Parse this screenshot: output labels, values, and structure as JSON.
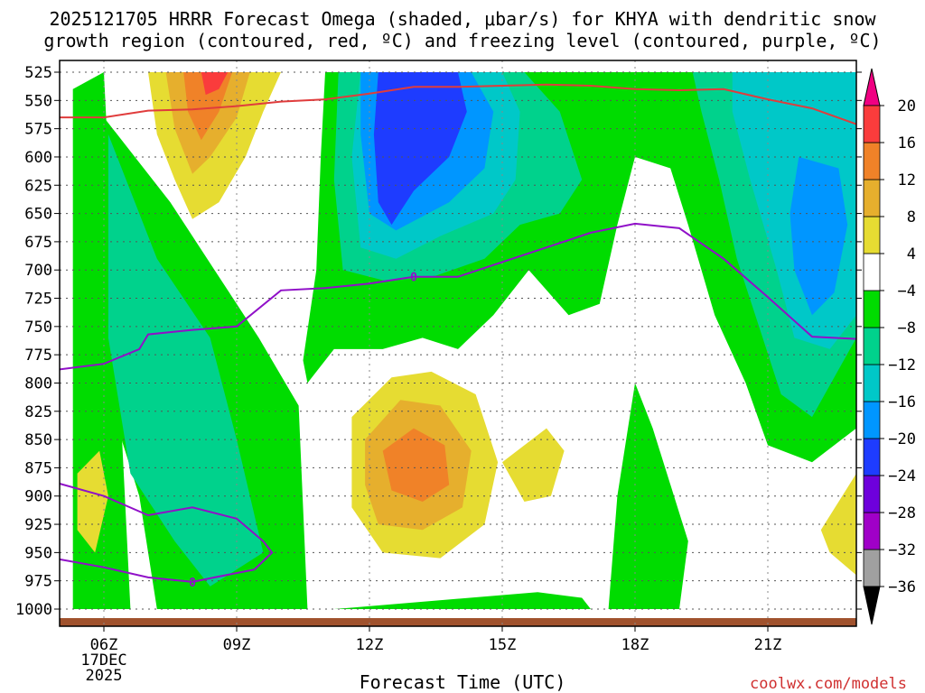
{
  "title_line1": "2025121705 HRRR Forecast Omega (shaded, μbar/s) for KHYA with dendritic snow",
  "title_line2": "growth region (contoured, red, ºC) and freezing level (contoured, purple, ºC)",
  "x_axis_label": "Forecast Time (UTC)",
  "credit": "coolwx.com/models",
  "date_labels": [
    "17DEC",
    "2025"
  ],
  "colors": {
    "credit": "#d03030",
    "ground": "#a0522d",
    "snow_contour": "#e03c3c",
    "freezing_contour": "#9010c8"
  },
  "chart_data": {
    "type": "heatmap",
    "title": "2025121705 HRRR Forecast Omega (shaded, μbar/s) for KHYA with dendritic snow growth region (contoured, red, ºC) and freezing level (contoured, purple, ºC)",
    "xlabel": "Forecast Time (UTC)",
    "ylabel": "",
    "x_ticks": [
      {
        "hour": 6,
        "label": "06Z"
      },
      {
        "hour": 9,
        "label": "09Z"
      },
      {
        "hour": 12,
        "label": "12Z"
      },
      {
        "hour": 15,
        "label": "15Z"
      },
      {
        "hour": 18,
        "label": "18Z"
      },
      {
        "hour": 21,
        "label": "21Z"
      }
    ],
    "xlim": [
      5,
      23
    ],
    "y_ticks": [
      525,
      550,
      575,
      600,
      625,
      650,
      675,
      700,
      725,
      750,
      775,
      800,
      825,
      850,
      875,
      900,
      925,
      950,
      975,
      1000
    ],
    "ylim_hpa": [
      1000,
      525
    ],
    "grid": true,
    "colorbar": {
      "levels": [
        -36,
        -32,
        -28,
        -24,
        -20,
        -16,
        -12,
        -8,
        -4,
        4,
        8,
        12,
        16,
        20
      ],
      "tick_labels": [
        "20",
        "16",
        "12",
        "8",
        "4",
        "−4",
        "−8",
        "−12",
        "−16",
        "−20",
        "−24",
        "−28",
        "−32",
        "−36"
      ],
      "colors_bottom_to_top": [
        "#000000",
        "#a0a0a0",
        "#a000c8",
        "#6e00dc",
        "#1e3cff",
        "#0096ff",
        "#00c8c8",
        "#00d28c",
        "#00dc00",
        "#ffffff",
        "#e6dc32",
        "#e6af2d",
        "#f08228",
        "#fa3c3c",
        "#f00082"
      ]
    },
    "regions_approx": [
      {
        "band": "-24 to -20",
        "hours": [
          11.8,
          14.0
        ],
        "hpa": [
          530,
          670
        ]
      },
      {
        "band": "4 to 16",
        "hours": [
          7.0,
          9.5
        ],
        "hpa": [
          525,
          655
        ]
      },
      {
        "band": "4 to 12",
        "hours": [
          11.5,
          14.5
        ],
        "hpa": [
          790,
          955
        ]
      },
      {
        "band": "-20 to -16",
        "hours": [
          21.5,
          23.0
        ],
        "hpa": [
          600,
          740
        ]
      }
    ],
    "series": [
      {
        "name": "",
        "color": "#e03c3c",
        "x": [
          5.0,
          6.0,
          7.0,
          8.0,
          9.0,
          10.0,
          11.0,
          12.0,
          13.0,
          14.0,
          15.0,
          16.0,
          17.0,
          18.0,
          19.0,
          20.0,
          21.0,
          22.0,
          23.0
        ],
        "y": [
          565,
          565,
          559,
          558,
          555,
          551,
          549,
          544,
          538,
          538,
          537,
          536,
          537,
          540,
          541,
          540,
          549,
          557,
          571
        ]
      },
      {
        "name": "",
        "color": "#9010c8",
        "contour_label": "0",
        "x": [
          5.0,
          6.0,
          6.8,
          7.0,
          8.0,
          9.0,
          10.0,
          11.0,
          12.0,
          13.0,
          14.0,
          15.0,
          16.0,
          17.0,
          18.0,
          19.0,
          20.0,
          21.0,
          22.0,
          23.0
        ],
        "y": [
          788,
          783,
          770,
          757,
          753,
          750,
          718,
          716,
          712,
          706,
          706,
          693,
          680,
          667,
          659,
          663,
          690,
          724,
          759,
          761
        ]
      },
      {
        "name": "",
        "color": "#9010c8",
        "contour_label": "0",
        "x": [
          5.0,
          6.0,
          7.0,
          8.0,
          9.0,
          9.6,
          9.8,
          9.4,
          8.5,
          8.0,
          7.0,
          6.0,
          5.0
        ],
        "y": [
          889,
          900,
          917,
          910,
          920,
          940,
          950,
          965,
          972,
          976,
          972,
          963,
          956
        ]
      }
    ]
  }
}
